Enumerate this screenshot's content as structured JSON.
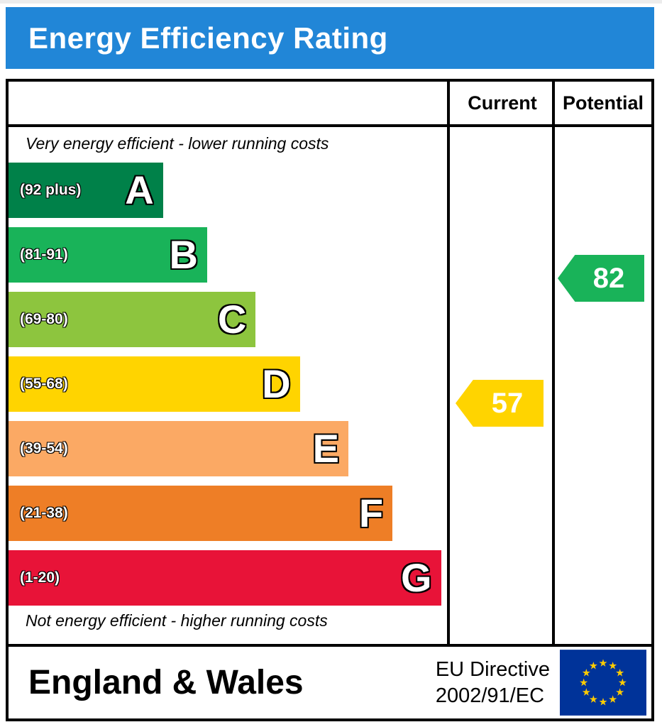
{
  "title": "Energy Efficiency Rating",
  "colors": {
    "header_bg": "#2186d7",
    "header_text": "#ffffff",
    "border": "#000000",
    "eu_flag_bg": "#003399",
    "eu_star": "#ffcc00"
  },
  "columns": {
    "current_label": "Current",
    "potential_label": "Potential"
  },
  "notes": {
    "top": "Very energy efficient - lower running costs",
    "bottom": "Not energy efficient - higher running costs"
  },
  "bands": [
    {
      "letter": "A",
      "range": "(92 plus)",
      "color": "#008149",
      "width_pct": 35
    },
    {
      "letter": "B",
      "range": "(81-91)",
      "color": "#19b359",
      "width_pct": 45
    },
    {
      "letter": "C",
      "range": "(69-80)",
      "color": "#8dc53e",
      "width_pct": 56
    },
    {
      "letter": "D",
      "range": "(55-68)",
      "color": "#ffd400",
      "width_pct": 66
    },
    {
      "letter": "E",
      "range": "(39-54)",
      "color": "#fba964",
      "width_pct": 77
    },
    {
      "letter": "F",
      "range": "(21-38)",
      "color": "#ee7e26",
      "width_pct": 87
    },
    {
      "letter": "G",
      "range": "(1-20)",
      "color": "#e81338",
      "width_pct": 98
    }
  ],
  "ratings": {
    "current": {
      "value": "57",
      "band": "D",
      "color": "#ffd400"
    },
    "potential": {
      "value": "82",
      "band": "B",
      "color": "#19b359"
    }
  },
  "footer": {
    "region": "England & Wales",
    "directive_line1": "EU Directive",
    "directive_line2": "2002/91/EC"
  },
  "chart_data": {
    "type": "bar",
    "title": "Energy Efficiency Rating",
    "categories": [
      "A",
      "B",
      "C",
      "D",
      "E",
      "F",
      "G"
    ],
    "band_ranges": [
      "92 plus",
      "81-91",
      "69-80",
      "55-68",
      "39-54",
      "21-38",
      "1-20"
    ],
    "values": [
      35,
      45,
      56,
      66,
      77,
      87,
      98
    ],
    "value_unit": "relative bar width %",
    "annotations": [
      {
        "label": "Current",
        "value": 57,
        "band": "D"
      },
      {
        "label": "Potential",
        "value": 82,
        "band": "B"
      }
    ],
    "legend_position": "none",
    "grid": false
  }
}
